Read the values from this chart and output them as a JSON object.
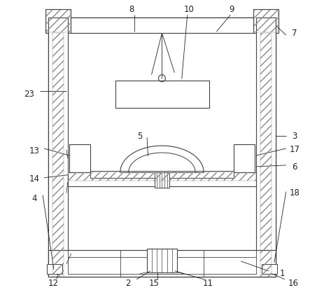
{
  "bg_color": "#ffffff",
  "line_color": "#404040",
  "fig_width": 4.43,
  "fig_height": 4.24,
  "dpi": 100
}
